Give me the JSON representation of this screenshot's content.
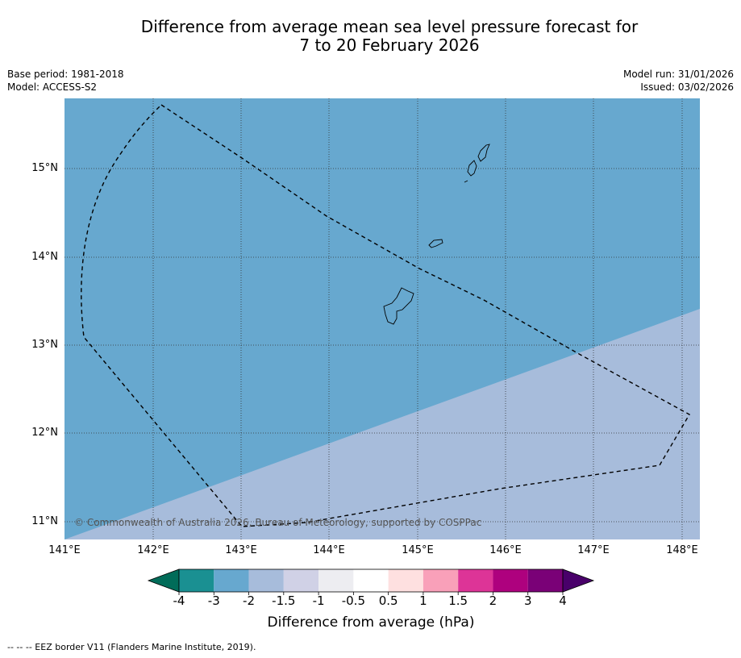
{
  "title_line1": "Difference from average mean sea level pressure forecast for",
  "title_line2": "7 to 20 February 2026",
  "base_period": "Base period: 1981-2018",
  "model": "Model: ACCESS-S2",
  "model_run": "Model run: 31/01/2026",
  "issued": "Issued: 03/02/2026",
  "lat_labels": [
    "15°N",
    "14°N",
    "13°N",
    "12°N",
    "11°N"
  ],
  "lon_labels": [
    "141°E",
    "142°E",
    "143°E",
    "144°E",
    "145°E",
    "146°E",
    "147°E",
    "148°E"
  ],
  "colorbar": {
    "title": "Difference from average (hPa)",
    "ticks": [
      "-4",
      "-3",
      "-2",
      "-1.5",
      "-1",
      "-0.5",
      "0.5",
      "1",
      "1.5",
      "2",
      "3",
      "4"
    ],
    "colors": [
      "#1a9092",
      "#67a8cf",
      "#a7bcdb",
      "#d0d1e6",
      "#ededf1",
      "#ffffff",
      "#fee0e0",
      "#f9a0b9",
      "#dd3497",
      "#ae017e",
      "#7a0177"
    ],
    "under_color": "#016c59",
    "over_color": "#49006a"
  },
  "map_colors": {
    "region_a": "#67a8cf",
    "region_b": "#a7bcdb"
  },
  "copyright": "© Commonwealth of Australia 2026, Bureau of Meteorology, supported by COSPPac",
  "footnote": "--  --  -- EEZ border V11 (Flanders Marine Institute, 2019)."
}
